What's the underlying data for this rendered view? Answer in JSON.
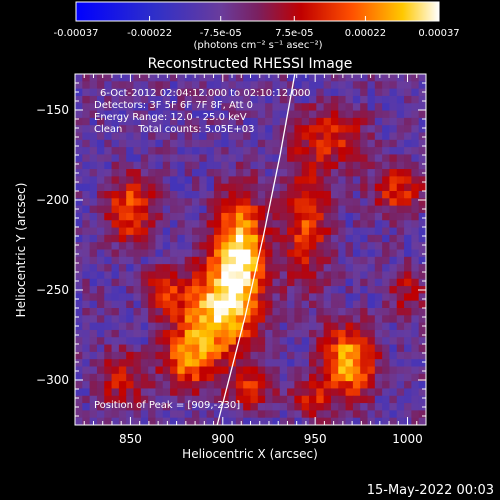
{
  "chart_data": {
    "type": "heatmap",
    "title": "Reconstructed RHESSI Image",
    "xlabel": "Heliocentric X (arcsec)",
    "ylabel": "Heliocentric Y (arcsec)",
    "xlim": [
      820,
      1010
    ],
    "ylim": [
      -325,
      -130
    ],
    "x_ticks": [
      850,
      900,
      950,
      1000
    ],
    "y_ticks": [
      -150,
      -200,
      -250,
      -300
    ],
    "colorbar": {
      "range": [
        -0.00037,
        0.00037
      ],
      "tick_values": [
        -0.00037,
        -0.00022,
        -7.5e-05,
        7.5e-05,
        0.00022,
        0.00037
      ],
      "tick_labels": [
        "-0.00037",
        "-0.00022",
        "-7.5e-05",
        "7.5e-05",
        "0.00022",
        "0.00037"
      ],
      "unit_label": "(photons cm⁻² s⁻¹ asec⁻²)"
    },
    "annotations": {
      "time_range": "6-Oct-2012 02:04:12.000 to 02:10:12.000",
      "detectors": "Detectors: 3F 5F 6F 7F 8F, Att 0",
      "energy": "Energy Range: 12.0 - 25.0 keV",
      "clean": "Clean     Total counts: 5.05E+03",
      "peak": "Position of Peak = [909,-230]"
    },
    "peak": {
      "x": 909,
      "y": -230
    },
    "sources": [
      {
        "x": 909,
        "y": -230,
        "sx": 10,
        "sy": 22,
        "amp": 1.0
      },
      {
        "x": 895,
        "y": -265,
        "sx": 14,
        "sy": 18,
        "amp": 0.85
      },
      {
        "x": 880,
        "y": -290,
        "sx": 9,
        "sy": 12,
        "amp": 0.55
      },
      {
        "x": 850,
        "y": -205,
        "sx": 9,
        "sy": 14,
        "amp": 0.6
      },
      {
        "x": 868,
        "y": -250,
        "sx": 7,
        "sy": 8,
        "amp": 0.45
      },
      {
        "x": 968,
        "y": -290,
        "sx": 10,
        "sy": 14,
        "amp": 0.85
      },
      {
        "x": 945,
        "y": -212,
        "sx": 9,
        "sy": 24,
        "amp": 0.55
      },
      {
        "x": 960,
        "y": -165,
        "sx": 14,
        "sy": 12,
        "amp": 0.45
      },
      {
        "x": 995,
        "y": -195,
        "sx": 10,
        "sy": 10,
        "amp": 0.5
      },
      {
        "x": 845,
        "y": -300,
        "sx": 10,
        "sy": 12,
        "amp": 0.4
      },
      {
        "x": 915,
        "y": -305,
        "sx": 9,
        "sy": 8,
        "amp": 0.45
      },
      {
        "x": 948,
        "y": -310,
        "sx": 8,
        "sy": 8,
        "amp": 0.4
      },
      {
        "x": 1000,
        "y": -250,
        "sx": 8,
        "sy": 10,
        "amp": 0.35
      }
    ],
    "limb_curve": [
      [
        939,
        -130
      ],
      [
        931,
        -175
      ],
      [
        922,
        -220
      ],
      [
        912,
        -265
      ],
      [
        902,
        -305
      ],
      [
        897,
        -325
      ]
    ]
  },
  "footer_date": "15-May-2022 00:03"
}
